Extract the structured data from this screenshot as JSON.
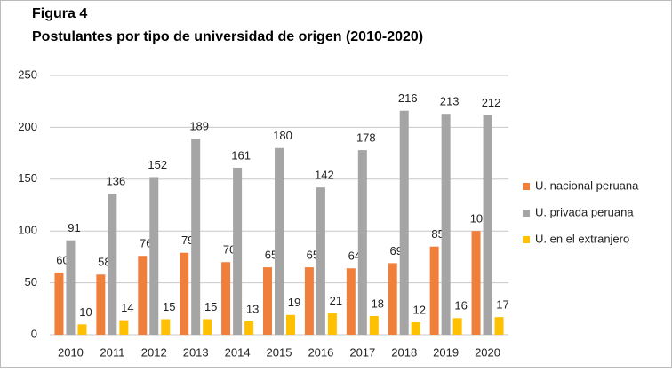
{
  "chart_data": {
    "type": "bar",
    "title": "Figura 4",
    "subtitle": "Postulantes por tipo de universidad de origen (2010-2020)",
    "categories": [
      "2010",
      "2011",
      "2012",
      "2013",
      "2014",
      "2015",
      "2016",
      "2017",
      "2018",
      "2019",
      "2020"
    ],
    "series": [
      {
        "name": "U. nacional peruana",
        "color": "#f07f3c",
        "values": [
          60,
          58,
          76,
          79,
          70,
          65,
          65,
          64,
          69,
          85,
          100
        ]
      },
      {
        "name": "U. privada peruana",
        "color": "#a5a5a5",
        "values": [
          91,
          136,
          152,
          189,
          161,
          180,
          142,
          178,
          216,
          213,
          212
        ]
      },
      {
        "name": "U. en el extranjero",
        "color": "#ffc000",
        "values": [
          10,
          14,
          15,
          15,
          13,
          19,
          21,
          18,
          12,
          16,
          17
        ]
      }
    ],
    "ylim": [
      0,
      250
    ],
    "yticks": [
      0,
      50,
      100,
      150,
      200,
      250
    ],
    "grid": true,
    "legend": "right"
  }
}
